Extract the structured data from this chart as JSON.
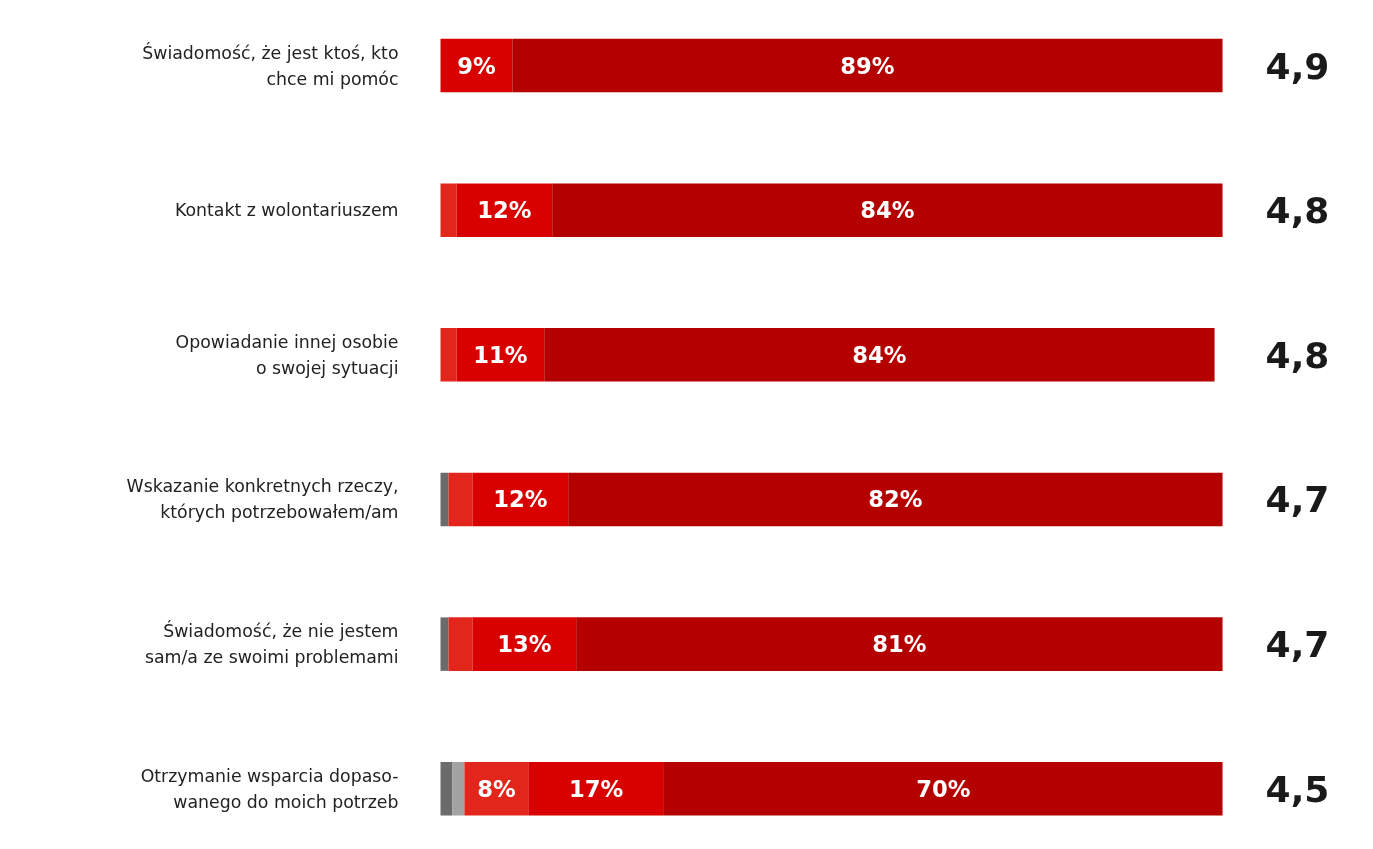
{
  "chart_data": {
    "type": "bar",
    "orientation": "horizontal",
    "stacked": true,
    "grid": false,
    "tick_labels": false,
    "categories": [
      "Świadomość, że jest ktoś, kto\nchce mi pomóc",
      "Kontakt z wolontariuszem",
      "Opowiadanie innej osobie\no swojej sytuacji",
      "Wskazanie konkretnych rzeczy,\nktórych potrzebowałem/am",
      "Świadomość, że nie jestem\nsam/a ze swoimi problemami",
      "Otrzymanie wsparcia dopaso-\nwanego do moich potrzeb"
    ],
    "series": [
      {
        "color": "#6b6b6b",
        "values": [
          null,
          null,
          null,
          1,
          1,
          1.5
        ],
        "value_labels": [
          null,
          null,
          null,
          null,
          null,
          null
        ]
      },
      {
        "color": "#a3a3a3",
        "values": [
          null,
          null,
          null,
          null,
          null,
          1.5
        ],
        "value_labels": [
          null,
          null,
          null,
          null,
          null,
          null
        ]
      },
      {
        "color": "#e2261c",
        "values": [
          null,
          2,
          2,
          3,
          3,
          8
        ],
        "value_labels": [
          null,
          null,
          null,
          null,
          null,
          "8%"
        ]
      },
      {
        "color": "#d90000",
        "values": [
          9,
          12,
          11,
          12,
          13,
          17
        ],
        "value_labels": [
          "9%",
          "12%",
          "11%",
          "12%",
          "13%",
          "17%"
        ]
      },
      {
        "color": "#b50000",
        "values": [
          89,
          84,
          84,
          82,
          81,
          70
        ],
        "value_labels": [
          "89%",
          "84%",
          "84%",
          "82%",
          "81%",
          "70%"
        ]
      }
    ],
    "annotations": [
      "4,9",
      "4,8",
      "4,8",
      "4,7",
      "4,7",
      "4,5"
    ]
  }
}
